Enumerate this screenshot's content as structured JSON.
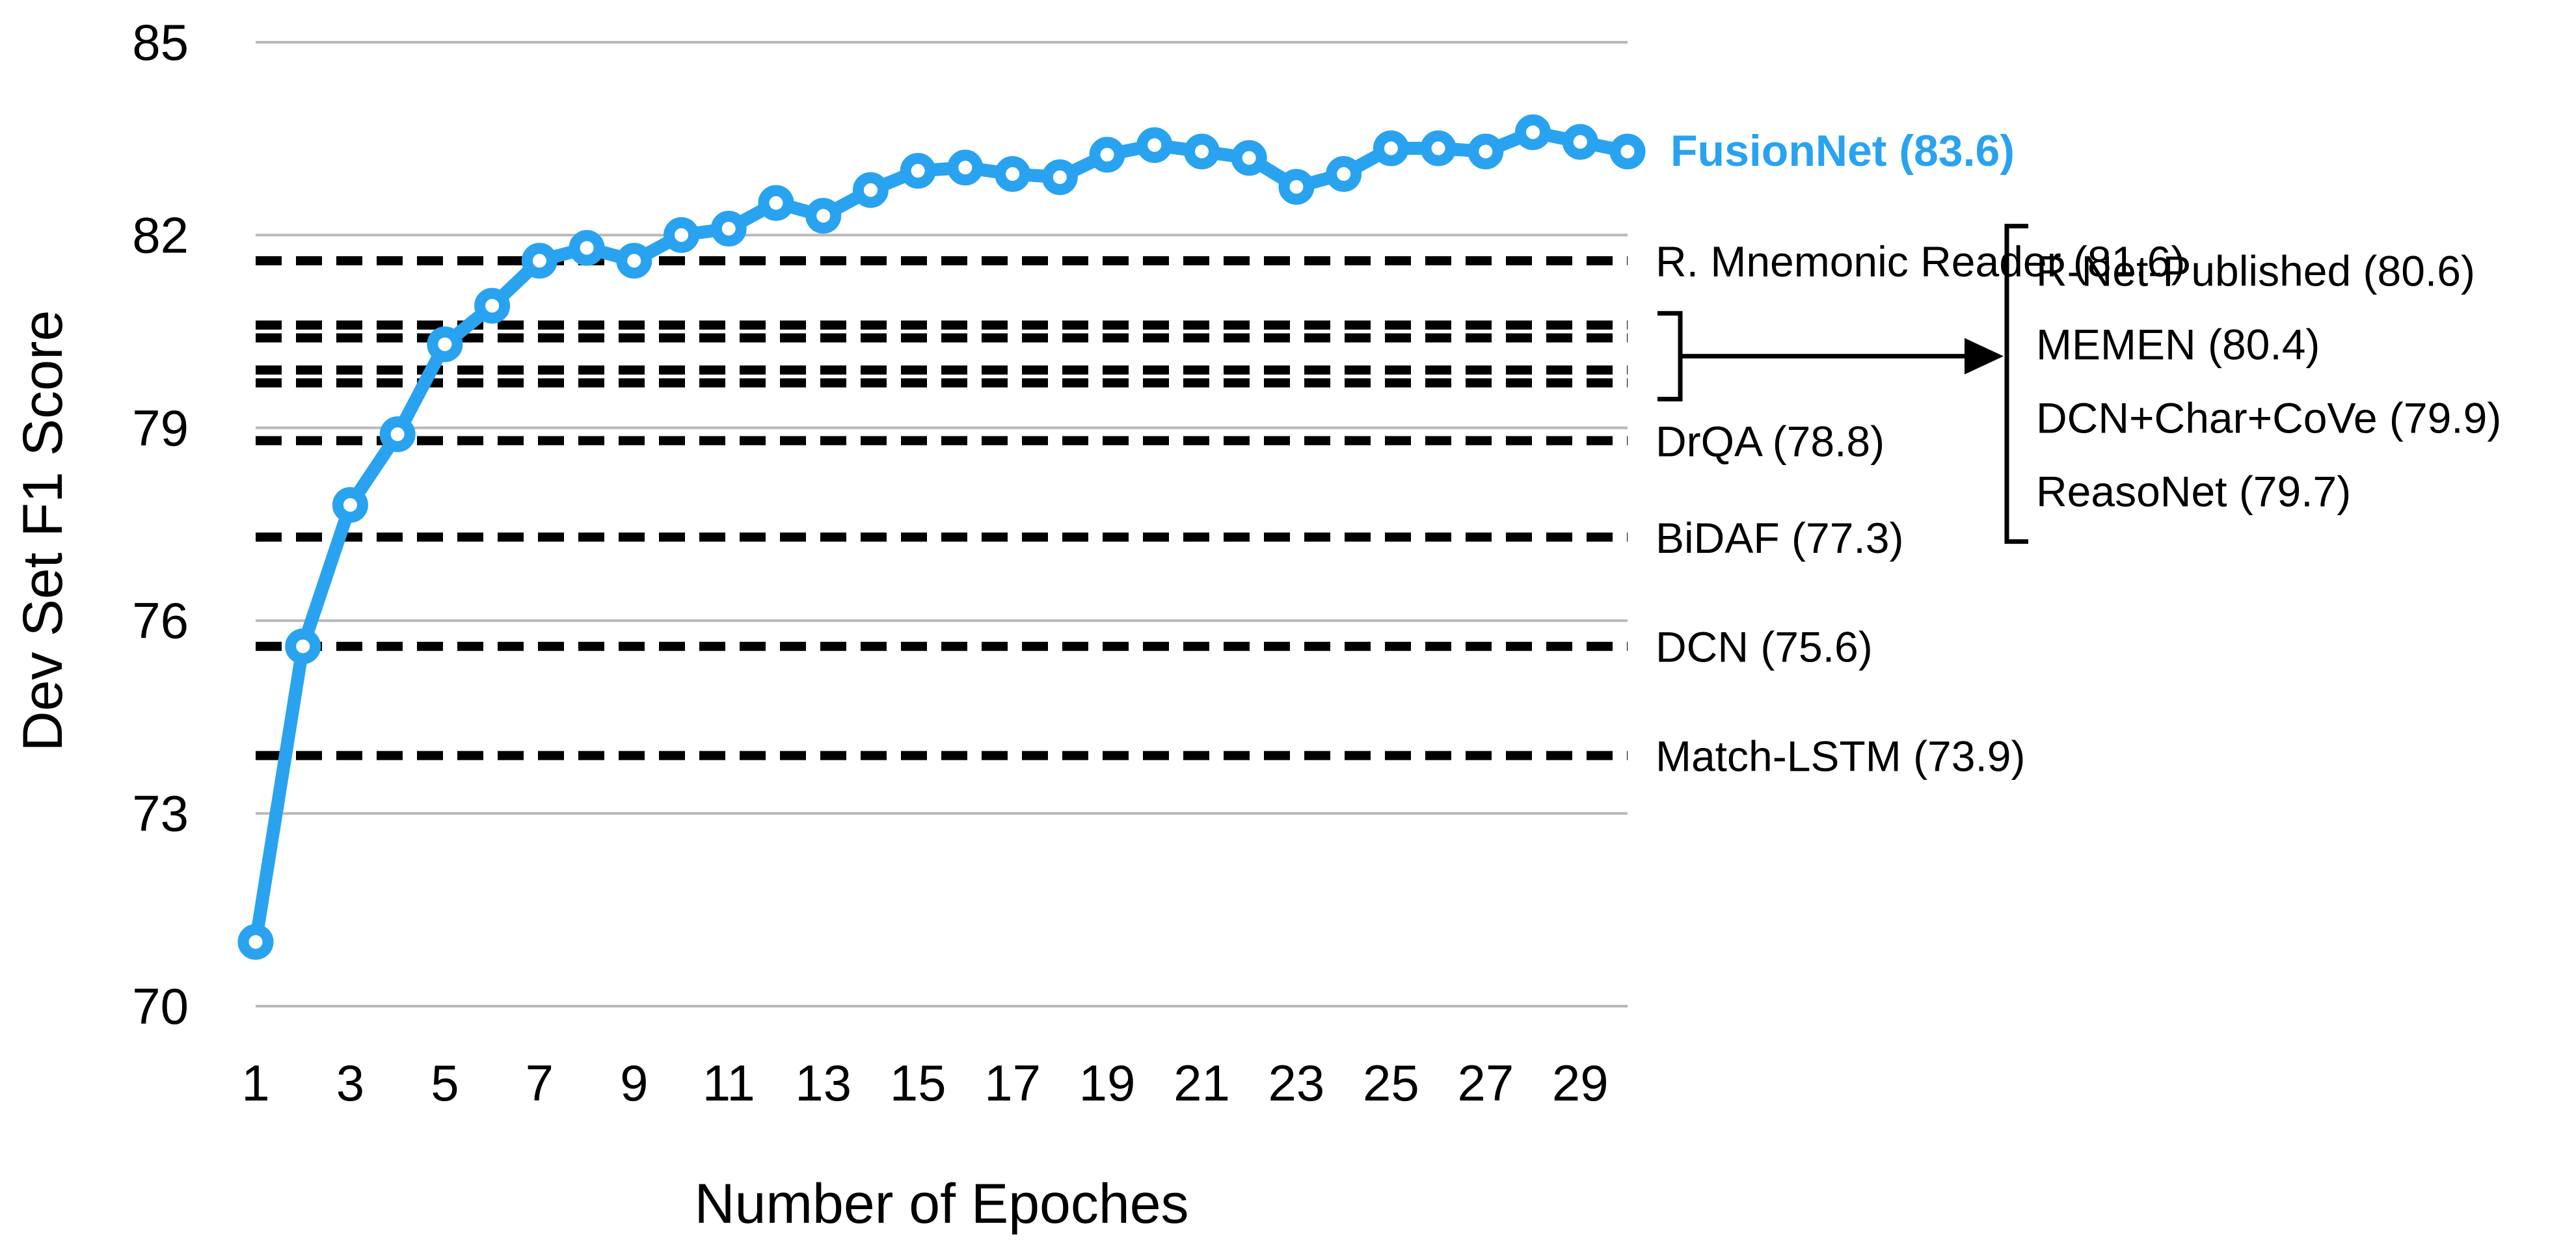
{
  "chart_data": {
    "type": "line",
    "xlabel": "Number of Epoches",
    "ylabel": "Dev Set F1 Score",
    "xlim": [
      1,
      30
    ],
    "ylim": [
      70,
      85
    ],
    "x_ticks": [
      1,
      3,
      5,
      7,
      9,
      11,
      13,
      15,
      17,
      19,
      21,
      23,
      25,
      27,
      29
    ],
    "y_ticks": [
      70,
      73,
      76,
      79,
      82,
      85
    ],
    "grid": "horizontal",
    "series": [
      {
        "name": "FusionNet (83.6)",
        "color": "#29a3ef",
        "marker": "circle",
        "x": [
          1,
          2,
          3,
          4,
          5,
          6,
          7,
          8,
          9,
          10,
          11,
          12,
          13,
          14,
          15,
          16,
          17,
          18,
          19,
          20,
          21,
          22,
          23,
          24,
          25,
          26,
          27,
          28,
          29,
          30
        ],
        "y": [
          71.0,
          75.6,
          77.8,
          78.9,
          80.3,
          80.9,
          81.6,
          81.8,
          81.6,
          82.0,
          82.1,
          82.5,
          82.3,
          82.7,
          83.0,
          83.05,
          82.95,
          82.9,
          83.25,
          83.4,
          83.3,
          83.2,
          82.75,
          82.95,
          83.35,
          83.35,
          83.3,
          83.6,
          83.45,
          83.3
        ]
      }
    ],
    "reference_lines": [
      {
        "label": "R. Mnemonic Reader (81.6)",
        "value": 81.6
      },
      {
        "label": "R-Net-Published (80.6)",
        "value": 80.6
      },
      {
        "label": "MEMEN (80.4)",
        "value": 80.4
      },
      {
        "label": "DCN+Char+CoVe (79.9)",
        "value": 79.9
      },
      {
        "label": "ReasoNet (79.7)",
        "value": 79.7
      },
      {
        "label": "DrQA (78.8)",
        "value": 78.8
      },
      {
        "label": "BiDAF (77.3)",
        "value": 77.3
      },
      {
        "label": "DCN (75.6)",
        "value": 75.6
      },
      {
        "label": "Match-LSTM (73.9)",
        "value": 73.9
      }
    ],
    "grouped_reference_labels": [
      "R-Net-Published (80.6)",
      "MEMEN (80.4)",
      "DCN+Char+CoVe (79.9)",
      "ReasoNet (79.7)"
    ],
    "ungrouped_reference_labels": [
      "R. Mnemonic Reader (81.6)",
      "DrQA (78.8)",
      "BiDAF (77.3)",
      "DCN (75.6)",
      "Match-LSTM (73.9)"
    ]
  }
}
